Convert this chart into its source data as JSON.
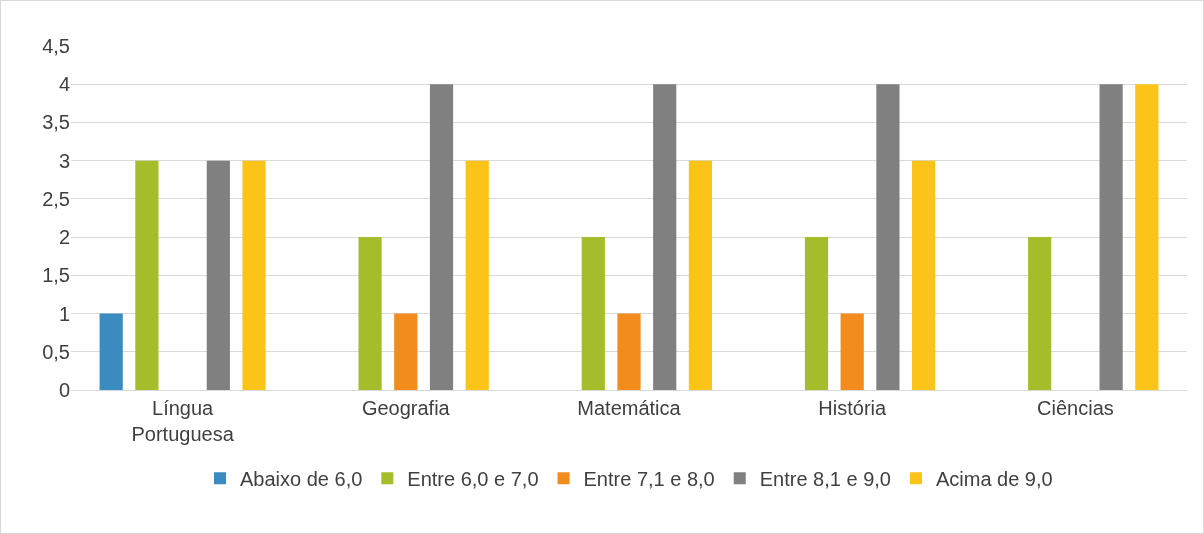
{
  "chart_data": {
    "type": "bar",
    "categories": [
      "Língua Portuguesa",
      "Geografia",
      "Matemática",
      "História",
      "Ciências"
    ],
    "series": [
      {
        "name": "Abaixo de 6,0",
        "color": "#3a8cc0",
        "values": [
          1,
          0,
          0,
          0,
          0
        ]
      },
      {
        "name": "Entre 6,0 e 7,0",
        "color": "#a5bd2a",
        "values": [
          3,
          2,
          2,
          2,
          2
        ]
      },
      {
        "name": "Entre 7,1 e 8,0",
        "color": "#f28c1c",
        "values": [
          0,
          1,
          1,
          1,
          0
        ]
      },
      {
        "name": "Entre 8,1 e 9,0",
        "color": "#808080",
        "values": [
          3,
          4,
          4,
          4,
          4
        ]
      },
      {
        "name": "Acima de 9,0",
        "color": "#fcc419",
        "values": [
          3,
          3,
          3,
          3,
          4
        ]
      }
    ],
    "ylim": [
      0,
      4.5
    ],
    "yticks": [
      0,
      {
        "value": 0.5,
        "label": "0,5"
      },
      1,
      {
        "value": 1.5,
        "label": "1,5"
      },
      2,
      {
        "value": 2.5,
        "label": "2,5"
      },
      3,
      {
        "value": 3.5,
        "label": "3,5"
      },
      4,
      {
        "value": 4.5,
        "label": "4,5"
      }
    ],
    "grid": "y",
    "legend": "bottom"
  }
}
